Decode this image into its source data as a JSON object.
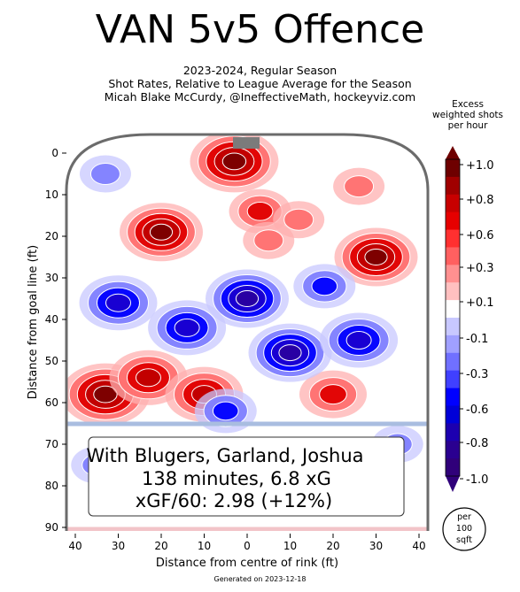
{
  "title": "VAN 5v5 Offence",
  "subtitle_lines": [
    "2023-2024, Regular Season",
    "Shot Rates, Relative to League Average for the Season",
    "Micah Blake McCurdy, @IneffectiveMath, hockeyviz.com"
  ],
  "colorbar_title_lines": [
    "Excess",
    "weighted shots",
    "per hour"
  ],
  "colorbar_ticks": [
    "+1.0",
    "+0.8",
    "+0.6",
    "+0.3",
    "+0.1",
    "-0.1",
    "-0.3",
    "-0.6",
    "-0.8",
    "-1.0"
  ],
  "per_label_lines": [
    "per",
    "100",
    "sqft"
  ],
  "info_lines": [
    "With Blugers, Garland, Joshua",
    "138 minutes, 6.8 xG",
    "xGF/60: 2.98 (+12%)"
  ],
  "generated": "Generated on 2023-12-18",
  "colors": {
    "red_dark": "#7a0000",
    "red": "#e00000",
    "red_light": "#ffb0b0",
    "blue_dark": "#2a00a0",
    "blue": "#0000ff",
    "blue_light": "#c8c8ff"
  },
  "chart_data": {
    "type": "heatmap",
    "title": "VAN 5v5 Offence",
    "xlabel": "Distance from centre of rink (ft)",
    "ylabel": "Distance from goal line (ft)",
    "xlim": [
      42,
      -42
    ],
    "ylim": [
      90,
      -5
    ],
    "x_ticks": [
      40,
      30,
      20,
      10,
      0,
      10,
      20,
      30,
      40
    ],
    "y_ticks": [
      0,
      10,
      20,
      30,
      40,
      50,
      60,
      70,
      80,
      90
    ],
    "colorbar_range": [
      -1.0,
      1.0
    ],
    "hotspots": [
      {
        "x": 3,
        "y": 2,
        "value": 1.0
      },
      {
        "x": 20,
        "y": 19,
        "value": 0.9
      },
      {
        "x": -3,
        "y": 14,
        "value": 0.5
      },
      {
        "x": -12,
        "y": 16,
        "value": 0.3
      },
      {
        "x": -30,
        "y": 25,
        "value": 0.9
      },
      {
        "x": -5,
        "y": 21,
        "value": 0.3
      },
      {
        "x": -26,
        "y": 8,
        "value": 0.3
      },
      {
        "x": 33,
        "y": 58,
        "value": 1.0
      },
      {
        "x": 23,
        "y": 54,
        "value": 0.8
      },
      {
        "x": 10,
        "y": 58,
        "value": 0.8
      },
      {
        "x": -20,
        "y": 58,
        "value": 0.6
      },
      {
        "x": 33,
        "y": 5,
        "value": -0.3
      },
      {
        "x": 0,
        "y": 35,
        "value": -0.9
      },
      {
        "x": 30,
        "y": 36,
        "value": -0.8
      },
      {
        "x": 14,
        "y": 42,
        "value": -0.8
      },
      {
        "x": -10,
        "y": 48,
        "value": -0.9
      },
      {
        "x": -26,
        "y": 45,
        "value": -0.8
      },
      {
        "x": -18,
        "y": 32,
        "value": -0.5
      },
      {
        "x": 5,
        "y": 62,
        "value": -0.5
      },
      {
        "x": 35,
        "y": 75,
        "value": -0.3
      },
      {
        "x": -35,
        "y": 70,
        "value": -0.3
      }
    ]
  }
}
